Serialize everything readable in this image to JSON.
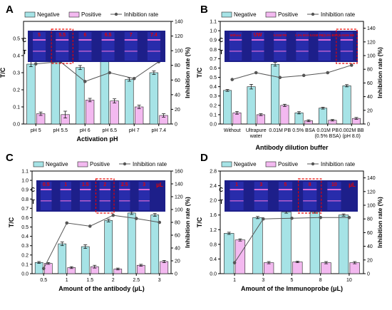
{
  "colors": {
    "negative": "#a6e3e6",
    "positive": "#f3b9f0",
    "rate": "#555555",
    "strip_bg": "#1d1f8a",
    "strip_highlight": "#e60000",
    "band": "#d86bd6"
  },
  "chart_data": [
    {
      "id": "A",
      "panel_label": "A",
      "type": "bar",
      "xlabel": "Activation pH",
      "ylabel": "T/C",
      "y2label": "Inhibition rate (%)",
      "categories": [
        "pH 5",
        "pH 5.5",
        "pH 6",
        "pH 6.5",
        "pH 7",
        "pH 7.4"
      ],
      "ylim": [
        0,
        0.6
      ],
      "yticks": [
        0,
        0.1,
        0.2,
        0.3,
        0.4,
        0.5
      ],
      "y2lim": [
        0,
        140
      ],
      "y2ticks": [
        0,
        20,
        40,
        60,
        80,
        100,
        120,
        140
      ],
      "series": [
        {
          "name": "Negative",
          "values": [
            0.35,
            0.38,
            0.33,
            0.46,
            0.26,
            0.3
          ],
          "errors": [
            0.015,
            0.015,
            0.012,
            0.012,
            0.01,
            0.01
          ]
        },
        {
          "name": "Positive",
          "values": [
            0.06,
            0.055,
            0.14,
            0.135,
            0.1,
            0.05
          ],
          "errors": [
            0.01,
            0.02,
            0.01,
            0.012,
            0.01,
            0.01
          ]
        }
      ],
      "line": {
        "name": "Inhibition rate",
        "values": [
          82,
          85,
          58,
          70,
          62,
          85
        ]
      },
      "strip": {
        "row_labels": [
          "C",
          "T"
        ],
        "lane_labels": [
          "5",
          "5.5",
          "6",
          "6.5",
          "7",
          "7.4"
        ],
        "unit": "",
        "highlight": 1
      },
      "legend": "top"
    },
    {
      "id": "B",
      "panel_label": "B",
      "type": "bar",
      "xlabel": "Antibody dilution buffer",
      "ylabel": "T/C",
      "y2label": "Inhibition rate (%)",
      "categories": [
        "Without",
        "Ultrapure water",
        "0.01M PB",
        "0.5% BSA",
        "0.01M PB (0.5% BSA)",
        "0.002M BB (pH 8.0)"
      ],
      "category_lines": [
        [
          "Without"
        ],
        [
          "Ultrapure",
          "water"
        ],
        [
          "0.01M PB"
        ],
        [
          "0.5% BSA"
        ],
        [
          "0.01M PB",
          "(0.5% BSA)"
        ],
        [
          "0.002M BB",
          "(pH 8.0)"
        ]
      ],
      "ylim": [
        0,
        1.1
      ],
      "yticks": [
        0,
        0.1,
        0.2,
        0.3,
        0.4,
        0.5,
        0.6,
        0.7,
        0.8,
        0.9,
        1.0,
        1.1
      ],
      "y2lim": [
        0,
        150
      ],
      "y2ticks": [
        0,
        20,
        40,
        60,
        80,
        100,
        120,
        140
      ],
      "series": [
        {
          "name": "Negative",
          "values": [
            0.36,
            0.4,
            0.64,
            0.12,
            0.17,
            0.41
          ],
          "errors": [
            0.01,
            0.025,
            0.02,
            0.012,
            0.01,
            0.012
          ]
        },
        {
          "name": "Positive",
          "values": [
            0.12,
            0.1,
            0.2,
            0.035,
            0.04,
            0.06
          ],
          "errors": [
            0.015,
            0.01,
            0.012,
            0.01,
            0.008,
            0.01
          ]
        }
      ],
      "line": {
        "name": "Inhibition rate",
        "values": [
          65,
          75,
          68,
          71,
          75,
          86
        ]
      },
      "strip": {
        "row_labels": [
          "C",
          "T"
        ],
        "lane_labels": [
          "Without",
          "UW",
          "0.01M PB",
          "0.5% BSA",
          "0.01M PB(0.5% BSA)",
          "0.002M BB"
        ],
        "unit": "",
        "highlight": 5
      },
      "legend": "top"
    },
    {
      "id": "C",
      "panel_label": "C",
      "type": "bar",
      "xlabel": "Amount of the antibody (μL)",
      "ylabel": "T/C",
      "y2label": "Inhibition rate (%)",
      "categories": [
        "0.5",
        "1",
        "1.5",
        "2",
        "2.5",
        "3"
      ],
      "ylim": [
        0,
        1.1
      ],
      "yticks": [
        0,
        0.1,
        0.2,
        0.3,
        0.4,
        0.5,
        0.6,
        0.7,
        0.8,
        0.9,
        1.0,
        1.1
      ],
      "y2lim": [
        0,
        160
      ],
      "y2ticks": [
        0,
        20,
        40,
        60,
        80,
        100,
        120,
        140,
        160
      ],
      "series": [
        {
          "name": "Negative",
          "values": [
            0.12,
            0.32,
            0.29,
            0.57,
            0.65,
            0.63
          ],
          "errors": [
            0.01,
            0.02,
            0.02,
            0.015,
            0.015,
            0.015
          ]
        },
        {
          "name": "Positive",
          "values": [
            0.11,
            0.065,
            0.075,
            0.05,
            0.09,
            0.13
          ],
          "errors": [
            0.01,
            0.01,
            0.015,
            0.01,
            0.01,
            0.012
          ]
        }
      ],
      "line": {
        "name": "Inhibition rate",
        "values": [
          8,
          79,
          74,
          91,
          86,
          80
        ]
      },
      "strip": {
        "row_labels": [
          "C",
          "T"
        ],
        "lane_labels": [
          "0.5",
          "1",
          "1.5",
          "2",
          "2.5",
          "3"
        ],
        "unit": "μL",
        "highlight": 3
      },
      "legend": "top"
    },
    {
      "id": "D",
      "panel_label": "D",
      "type": "bar",
      "xlabel": "Amount of the Immunoprobe (μL)",
      "ylabel": "T/C",
      "y2label": "Inhibition rate (%)",
      "categories": [
        "1",
        "3",
        "5",
        "8",
        "10"
      ],
      "ylim": [
        0,
        2.8
      ],
      "yticks": [
        0,
        0.4,
        0.8,
        1.2,
        1.6,
        2.0,
        2.4,
        2.8
      ],
      "y2lim": [
        0,
        150
      ],
      "y2ticks": [
        0,
        20,
        40,
        60,
        80,
        100,
        120,
        140
      ],
      "series": [
        {
          "name": "Negative",
          "values": [
            1.1,
            1.53,
            1.68,
            1.68,
            1.6
          ],
          "errors": [
            0.03,
            0.03,
            0.03,
            0.03,
            0.03
          ]
        },
        {
          "name": "Positive",
          "values": [
            0.92,
            0.3,
            0.32,
            0.3,
            0.3
          ],
          "errors": [
            0.03,
            0.03,
            0.02,
            0.03,
            0.03
          ]
        }
      ],
      "line": {
        "name": "Inhibition rate",
        "values": [
          16,
          80,
          81,
          82,
          82
        ]
      },
      "strip": {
        "row_labels": [
          "C",
          "T"
        ],
        "lane_labels": [
          "1",
          "3",
          "5",
          "8",
          "10"
        ],
        "unit": "μL",
        "highlight": 3
      },
      "legend": "top"
    }
  ]
}
